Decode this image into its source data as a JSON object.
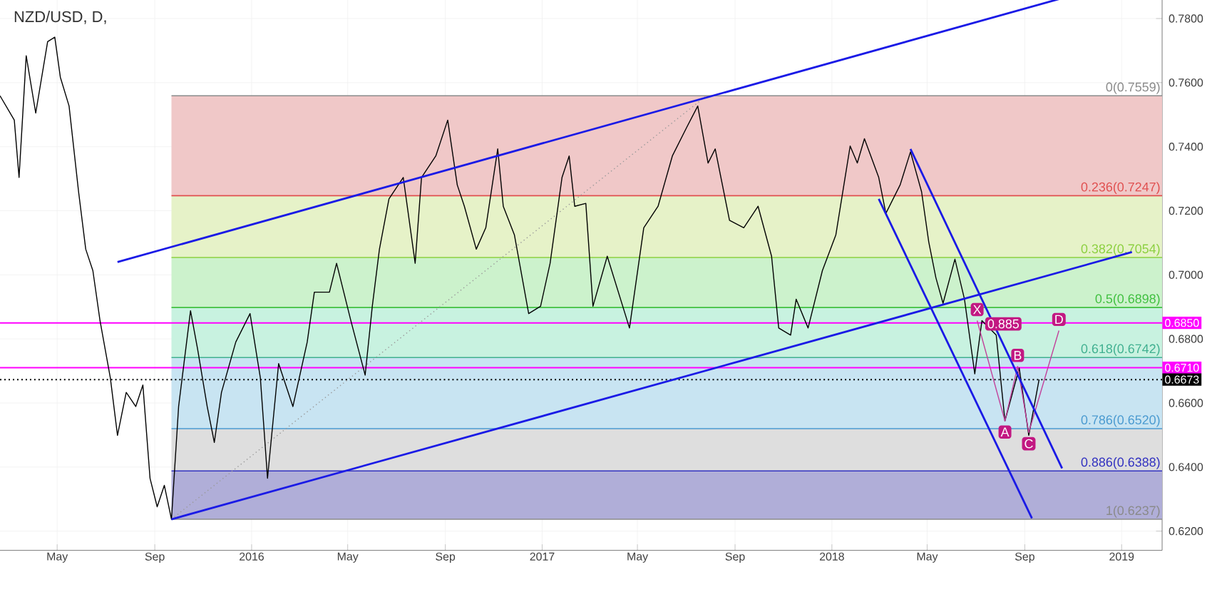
{
  "chart_data": {
    "type": "line",
    "title": "NZD/USD, D,",
    "xlim": [
      "2015-02-18",
      "2019-02-21"
    ],
    "ylim": [
      0.614,
      0.793
    ],
    "xticks": [
      {
        "value": "2015-05-01",
        "label": "May"
      },
      {
        "value": "2015-09-01",
        "label": "Sep"
      },
      {
        "value": "2016-01-01",
        "label": "2016"
      },
      {
        "value": "2016-05-01",
        "label": "May"
      },
      {
        "value": "2016-09-01",
        "label": "Sep"
      },
      {
        "value": "2017-01-01",
        "label": "2017"
      },
      {
        "value": "2017-05-01",
        "label": "May"
      },
      {
        "value": "2017-09-01",
        "label": "Sep"
      },
      {
        "value": "2018-01-01",
        "label": "2018"
      },
      {
        "value": "2018-05-01",
        "label": "May"
      },
      {
        "value": "2018-09-01",
        "label": "Sep"
      },
      {
        "value": "2019-01-01",
        "label": "2019"
      }
    ],
    "yticks": [
      {
        "value": 0.62,
        "label": "0.6200"
      },
      {
        "value": 0.64,
        "label": "0.6400"
      },
      {
        "value": 0.66,
        "label": "0.6600"
      },
      {
        "value": 0.68,
        "label": "0.6800"
      },
      {
        "value": 0.7,
        "label": "0.7000"
      },
      {
        "value": 0.72,
        "label": "0.7200"
      },
      {
        "value": 0.74,
        "label": "0.7400"
      },
      {
        "value": 0.76,
        "label": "0.7600"
      },
      {
        "value": 0.78,
        "label": "0.7800"
      }
    ],
    "grid": true,
    "bands": [
      {
        "axis": "y",
        "from": 0.7247,
        "to": 0.7559,
        "color": "#f0c8c8"
      },
      {
        "axis": "y",
        "from": 0.7054,
        "to": 0.7247,
        "color": "#e6f2c8"
      },
      {
        "axis": "y",
        "from": 0.6898,
        "to": 0.7054,
        "color": "#ccf2cc"
      },
      {
        "axis": "y",
        "from": 0.6742,
        "to": 0.6898,
        "color": "#c8f2e0"
      },
      {
        "axis": "y",
        "from": 0.652,
        "to": 0.6742,
        "color": "#c8e4f2"
      },
      {
        "axis": "y",
        "from": 0.6388,
        "to": 0.652,
        "color": "#dedede"
      },
      {
        "axis": "y",
        "from": 0.6237,
        "to": 0.6388,
        "color": "#b0aed8"
      }
    ],
    "ref_lines": [
      {
        "axis": "y",
        "value": 0.7559,
        "label": "0(0.7559)",
        "color": "#8a8a8a"
      },
      {
        "axis": "y",
        "value": 0.7247,
        "label": "0.236(0.7247)",
        "color": "#e05050"
      },
      {
        "axis": "y",
        "value": 0.7054,
        "label": "0.382(0.7054)",
        "color": "#8cd040"
      },
      {
        "axis": "y",
        "value": 0.6898,
        "label": "0.5(0.6898)",
        "color": "#40c040"
      },
      {
        "axis": "y",
        "value": 0.6742,
        "label": "0.618(0.6742)",
        "color": "#40b090"
      },
      {
        "axis": "y",
        "value": 0.652,
        "label": "0.786(0.6520)",
        "color": "#4a9ad0"
      },
      {
        "axis": "y",
        "value": 0.6388,
        "label": "0.886(0.6388)",
        "color": "#3030c0"
      },
      {
        "axis": "y",
        "value": 0.6237,
        "label": "1(0.6237)",
        "color": "#8a8a8a"
      },
      {
        "axis": "y",
        "value": 0.685,
        "label": "0.6850",
        "color": "#ff00ff"
      },
      {
        "axis": "y",
        "value": 0.671,
        "label": "0.6710",
        "color": "#ff00ff"
      },
      {
        "axis": "y",
        "value": 0.6673,
        "label": "0.6673",
        "color": "#000000",
        "line_style": "dotted"
      }
    ],
    "series": [
      {
        "color": "#999999",
        "line_style": "dotted",
        "x": [
          "2015-09-22",
          "2017-07-27"
        ],
        "values": [
          0.6237,
          0.7559
        ]
      },
      {
        "color": "#000000",
        "x": [
          "2015-02-18",
          "2015-03-08",
          "2015-03-14",
          "2015-03-23",
          "2015-04-04",
          "2015-04-19",
          "2015-04-28",
          "2015-05-05",
          "2015-05-16",
          "2015-05-28",
          "2015-06-06",
          "2015-06-15",
          "2015-06-24",
          "2015-07-07",
          "2015-07-16",
          "2015-07-27",
          "2015-08-08",
          "2015-08-17",
          "2015-08-26",
          "2015-09-04",
          "2015-09-13",
          "2015-09-22",
          "2015-10-01",
          "2015-10-16",
          "2015-10-25",
          "2015-11-06",
          "2015-11-15",
          "2015-11-24",
          "2015-12-12",
          "2015-12-30",
          "2016-01-12",
          "2016-01-21",
          "2016-02-04",
          "2016-02-22",
          "2016-03-11",
          "2016-03-20",
          "2016-04-08",
          "2016-04-17",
          "2016-05-05",
          "2016-05-23",
          "2016-06-01",
          "2016-06-10",
          "2016-06-22",
          "2016-07-10",
          "2016-07-25",
          "2016-08-02",
          "2016-08-20",
          "2016-09-04",
          "2016-09-16",
          "2016-09-25",
          "2016-10-10",
          "2016-10-22",
          "2016-11-06",
          "2016-11-13",
          "2016-11-27",
          "2016-12-15",
          "2016-12-30",
          "2017-01-11",
          "2017-01-26",
          "2017-02-04",
          "2017-02-11",
          "2017-02-25",
          "2017-03-06",
          "2017-03-24",
          "2017-04-21",
          "2017-05-09",
          "2017-05-27",
          "2017-06-14",
          "2017-07-02",
          "2017-07-16",
          "2017-07-29",
          "2017-08-07",
          "2017-08-25",
          "2017-09-12",
          "2017-09-30",
          "2017-10-17",
          "2017-10-26",
          "2017-11-10",
          "2017-11-17",
          "2017-12-02",
          "2017-12-20",
          "2018-01-06",
          "2018-01-24",
          "2018-02-02",
          "2018-02-11",
          "2018-03-01",
          "2018-03-10",
          "2018-03-28",
          "2018-04-10",
          "2018-04-24",
          "2018-05-03",
          "2018-05-12",
          "2018-05-21",
          "2018-06-05",
          "2018-06-17",
          "2018-06-30",
          "2018-07-09",
          "2018-07-27",
          "2018-08-07",
          "2018-08-25",
          "2018-09-06",
          "2018-09-19"
        ],
        "values": [
          0.7559,
          0.7483,
          0.7304,
          0.7684,
          0.7505,
          0.7728,
          0.7742,
          0.7617,
          0.7527,
          0.7259,
          0.708,
          0.7013,
          0.6857,
          0.6678,
          0.6499,
          0.6633,
          0.6589,
          0.6656,
          0.6365,
          0.6276,
          0.6343,
          0.6237,
          0.6589,
          0.6888,
          0.6767,
          0.6589,
          0.6477,
          0.6633,
          0.679,
          0.6879,
          0.6678,
          0.6365,
          0.6723,
          0.6589,
          0.679,
          0.6946,
          0.6946,
          0.7036,
          0.6857,
          0.6687,
          0.6902,
          0.708,
          0.7237,
          0.7304,
          0.7036,
          0.7304,
          0.7371,
          0.7483,
          0.7281,
          0.7214,
          0.708,
          0.7147,
          0.7393,
          0.7214,
          0.7125,
          0.6879,
          0.6902,
          0.7036,
          0.7304,
          0.7371,
          0.7214,
          0.7223,
          0.6902,
          0.7058,
          0.6834,
          0.7147,
          0.7214,
          0.7371,
          0.746,
          0.7527,
          0.7349,
          0.7393,
          0.717,
          0.7147,
          0.7214,
          0.7058,
          0.6834,
          0.6812,
          0.6924,
          0.6834,
          0.7013,
          0.7125,
          0.7402,
          0.7349,
          0.7425,
          0.7304,
          0.7192,
          0.7281,
          0.7384,
          0.7259,
          0.7103,
          0.6991,
          0.6911,
          0.7049,
          0.6924,
          0.6691,
          0.6857,
          0.6812,
          0.6544,
          0.6709,
          0.6499,
          0.6673
        ]
      },
      {
        "color": "#c2409a",
        "x": [
          "2018-07-03",
          "2018-08-07",
          "2018-08-23",
          "2018-09-06",
          "2018-10-14"
        ],
        "values": [
          0.6857,
          0.6544,
          0.6714,
          0.6508,
          0.6826
        ]
      },
      {
        "color": "#1a1ae6",
        "x": [
          "2015-07-16",
          "2018-11-05"
        ],
        "values": [
          0.704,
          0.7876
        ]
      },
      {
        "color": "#1a1ae6",
        "x": [
          "2015-09-22",
          "2019-01-14"
        ],
        "values": [
          0.6237,
          0.7071
        ]
      },
      {
        "color": "#1a1ae6",
        "x": [
          "2018-03-01",
          "2018-09-10"
        ],
        "values": [
          0.7237,
          0.624
        ]
      },
      {
        "color": "#1a1ae6",
        "x": [
          "2018-04-10",
          "2018-10-18"
        ],
        "values": [
          0.7393,
          0.6396
        ]
      }
    ],
    "annotations": [
      {
        "text": "X",
        "x": "2018-07-03",
        "y": 0.6857
      },
      {
        "text": "A",
        "x": "2018-08-07",
        "y": 0.6544
      },
      {
        "text": "B",
        "x": "2018-08-23",
        "y": 0.6714
      },
      {
        "text": "C",
        "x": "2018-09-06",
        "y": 0.6508
      },
      {
        "text": "D",
        "x": "2018-10-14",
        "y": 0.6826
      },
      {
        "text": "0.885",
        "x": "2018-08-05",
        "y": 0.6812
      }
    ]
  }
}
